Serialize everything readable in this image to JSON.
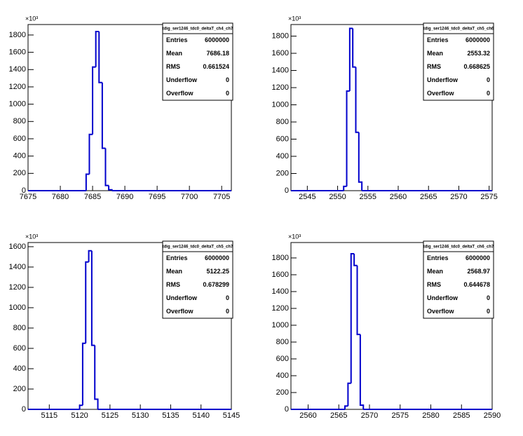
{
  "chart_data": [
    {
      "type": "histogram",
      "title": "tdig_ser1246_tdc0_deltaT_ch4_ch7",
      "y_multiplier": "×10³",
      "bins": [
        7684,
        7684.5,
        7685,
        7685.5,
        7686,
        7686.5,
        7687,
        7687.5,
        7688
      ],
      "counts": [
        190,
        650,
        1430,
        1840,
        1250,
        490,
        60,
        10
      ],
      "xlim": [
        7675,
        7706.5
      ],
      "ylim": [
        0,
        1921
      ],
      "xticks": [
        7675,
        7680,
        7685,
        7690,
        7695,
        7700,
        7705
      ],
      "yticks": [
        0,
        200,
        400,
        600,
        800,
        1000,
        1200,
        1400,
        1600,
        1800
      ],
      "color": "#0000cc",
      "stats": {
        "rows": [
          {
            "label": "Entries",
            "value": 6000000
          },
          {
            "label": "Mean",
            "value": 7686.18
          },
          {
            "label": "RMS",
            "value": 0.661524
          },
          {
            "label": "Underflow",
            "value": 0
          },
          {
            "label": "Overflow",
            "value": 0
          }
        ]
      }
    },
    {
      "type": "histogram",
      "title": "tdig_ser1246_tdc0_deltaT_ch5_ch6",
      "y_multiplier": "×10³",
      "bins": [
        2551,
        2551.5,
        2552,
        2552.5,
        2553,
        2553.5,
        2554
      ],
      "counts": [
        50,
        1160,
        1890,
        1440,
        680,
        100
      ],
      "xlim": [
        2542.3,
        2575.5
      ],
      "ylim": [
        0,
        1935
      ],
      "xticks": [
        2545,
        2550,
        2555,
        2560,
        2565,
        2570,
        2575
      ],
      "yticks": [
        0,
        200,
        400,
        600,
        800,
        1000,
        1200,
        1400,
        1600,
        1800
      ],
      "color": "#0000cc",
      "stats": {
        "rows": [
          {
            "label": "Entries",
            "value": 6000000
          },
          {
            "label": "Mean",
            "value": 2553.32
          },
          {
            "label": "RMS",
            "value": 0.668625
          },
          {
            "label": "Underflow",
            "value": 0
          },
          {
            "label": "Overflow",
            "value": 0
          }
        ]
      }
    },
    {
      "type": "histogram",
      "title": "tdig_ser1246_tdc0_deltaT_ch5_ch7",
      "y_multiplier": "×10³",
      "bins": [
        5120,
        5120.5,
        5121,
        5121.5,
        5122,
        5122.5,
        5123
      ],
      "counts": [
        40,
        650,
        1450,
        1560,
        630,
        100
      ],
      "xlim": [
        5111.5,
        5145
      ],
      "ylim": [
        0,
        1641
      ],
      "xticks": [
        5115,
        5120,
        5125,
        5130,
        5135,
        5140,
        5145
      ],
      "yticks": [
        0,
        200,
        400,
        600,
        800,
        1000,
        1200,
        1400,
        1600
      ],
      "color": "#0000cc",
      "stats": {
        "rows": [
          {
            "label": "Entries",
            "value": 6000000
          },
          {
            "label": "Mean",
            "value": 5122.25
          },
          {
            "label": "RMS",
            "value": 0.678299
          },
          {
            "label": "Underflow",
            "value": 0
          },
          {
            "label": "Overflow",
            "value": 0
          }
        ]
      }
    },
    {
      "type": "histogram",
      "title": "tdig_ser1246_tdc0_deltaT_ch6_ch7",
      "y_multiplier": "×10³",
      "bins": [
        2566,
        2566.5,
        2567,
        2567.5,
        2568,
        2568.5,
        2569
      ],
      "counts": [
        40,
        310,
        1850,
        1710,
        890,
        50
      ],
      "xlim": [
        2557.2,
        2590
      ],
      "ylim": [
        0,
        1983
      ],
      "xticks": [
        2560,
        2565,
        2570,
        2575,
        2580,
        2585,
        2590
      ],
      "yticks": [
        0,
        200,
        400,
        600,
        800,
        1000,
        1200,
        1400,
        1600,
        1800
      ],
      "color": "#0000cc",
      "stats": {
        "rows": [
          {
            "label": "Entries",
            "value": 6000000
          },
          {
            "label": "Mean",
            "value": 2568.97
          },
          {
            "label": "RMS",
            "value": 0.644678
          },
          {
            "label": "Underflow",
            "value": 0
          },
          {
            "label": "Overflow",
            "value": 0
          }
        ]
      }
    }
  ]
}
